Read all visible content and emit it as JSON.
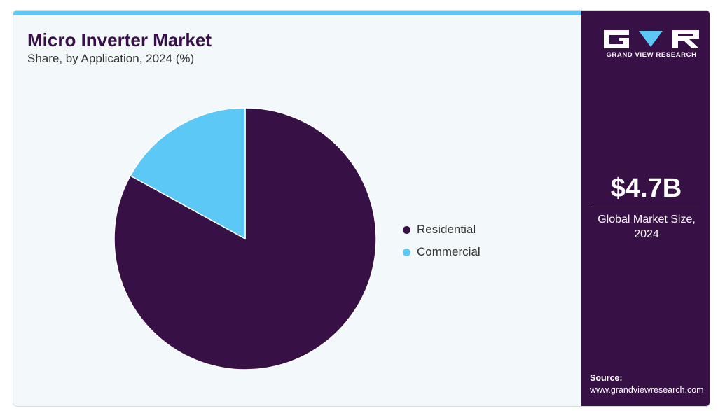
{
  "header": {
    "title": "Micro Inverter Market",
    "subtitle": "Share, by Application, 2024 (%)"
  },
  "chart_data": {
    "type": "pie",
    "categories": [
      "Residential",
      "Commercial"
    ],
    "values": [
      83,
      17
    ],
    "colors": [
      "#371045",
      "#5bc8f5"
    ],
    "legend_position": "right",
    "start_angle_deg": 0,
    "direction": "clockwise"
  },
  "sidebar": {
    "logo_caption": "GRAND VIEW RESEARCH",
    "market_size": "$4.7B",
    "market_label_line1": "Global Market Size,",
    "market_label_line2": "2024",
    "source_title": "Source:",
    "source_url": "www.grandviewresearch.com"
  },
  "colors": {
    "accent": "#5bc8f5",
    "brand": "#371045",
    "background": "#f3f8fb"
  }
}
